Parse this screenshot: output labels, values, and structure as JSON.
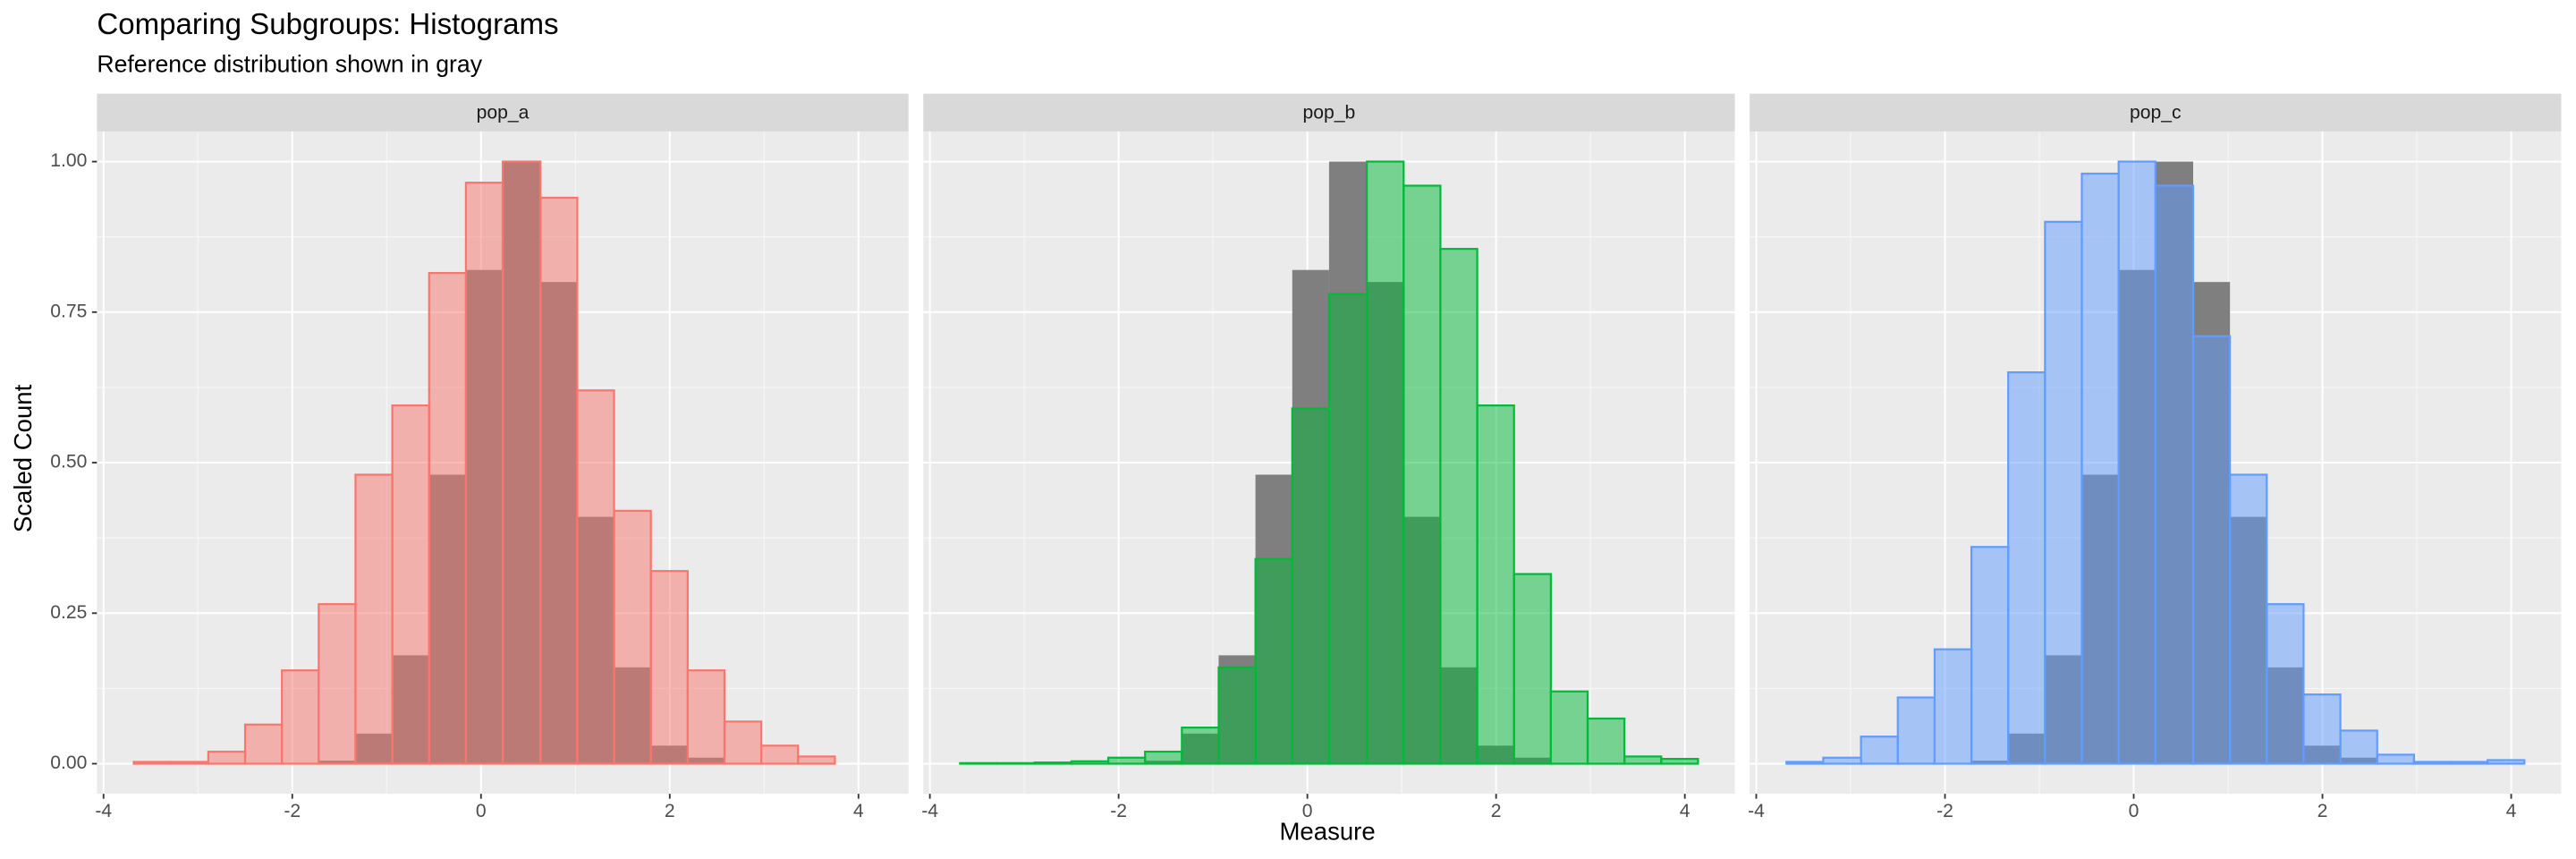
{
  "chart_data": {
    "type": "histogram",
    "title": "Comparing Subgroups: Histograms",
    "subtitle": "Reference distribution shown in gray",
    "xlabel": "Measure",
    "ylabel": "Scaled Count",
    "bins": [
      -3.68,
      -3.29,
      -2.89,
      -2.5,
      -2.11,
      -1.72,
      -1.33,
      -0.94,
      -0.55,
      -0.16,
      0.23,
      0.63,
      1.02,
      1.41,
      1.8,
      2.19,
      2.58,
      2.97,
      3.36,
      3.75,
      4.14
    ],
    "reference_color": "#7f7f7f",
    "reference_values": [
      0,
      0,
      0,
      0,
      0,
      0.005,
      0.05,
      0.18,
      0.48,
      0.82,
      1.0,
      0.8,
      0.41,
      0.16,
      0.03,
      0.01,
      0,
      0,
      0,
      0
    ],
    "series": [
      {
        "name": "pop_a",
        "color": "#F8766D",
        "values": [
          0.003,
          0.003,
          0.02,
          0.065,
          0.155,
          0.265,
          0.48,
          0.595,
          0.815,
          0.965,
          1.0,
          0.94,
          0.62,
          0.42,
          0.32,
          0.155,
          0.07,
          0.03,
          0.012,
          0
        ]
      },
      {
        "name": "pop_b",
        "color": "#00BA38",
        "values": [
          0.001,
          0.001,
          0.002,
          0.004,
          0.01,
          0.02,
          0.06,
          0.16,
          0.34,
          0.59,
          0.78,
          1.0,
          0.96,
          0.855,
          0.595,
          0.315,
          0.12,
          0.075,
          0.012,
          0.008
        ]
      },
      {
        "name": "pop_c",
        "color": "#619CFF",
        "values": [
          0.003,
          0.01,
          0.045,
          0.11,
          0.19,
          0.36,
          0.65,
          0.9,
          0.98,
          1.0,
          0.96,
          0.71,
          0.48,
          0.265,
          0.115,
          0.055,
          0.015,
          0.003,
          0.003,
          0.006
        ]
      }
    ],
    "xlim": [
      -4.07,
      4.53
    ],
    "ylim": [
      -0.05,
      1.05
    ],
    "xticks": [
      -4,
      -2,
      0,
      2,
      4
    ],
    "yticks": [
      {
        "value": 0,
        "label": "0.00"
      },
      {
        "value": 0.25,
        "label": "0.25"
      },
      {
        "value": 0.5,
        "label": "0.50"
      },
      {
        "value": 0.75,
        "label": "0.75"
      },
      {
        "value": 1,
        "label": "1.00"
      }
    ],
    "grid": true
  }
}
